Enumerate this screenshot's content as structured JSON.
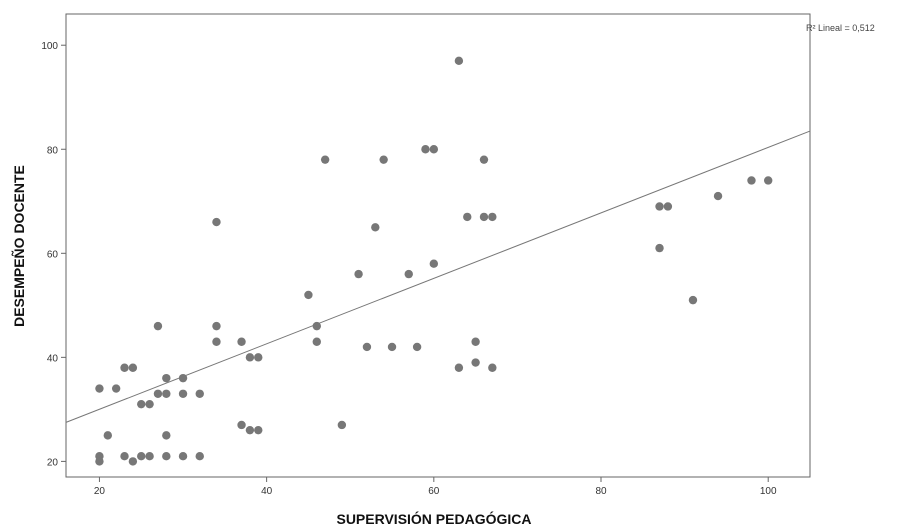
{
  "chart_data": {
    "type": "scatter",
    "xlabel": "SUPERVISIÓN PEDAGÓGICA",
    "ylabel": "DESEMPEÑO DOCENTE",
    "xlim": [
      16,
      105
    ],
    "ylim": [
      17,
      106
    ],
    "xticks": [
      20,
      40,
      60,
      80,
      100
    ],
    "yticks": [
      20,
      40,
      60,
      80,
      100
    ],
    "grid": false,
    "point_color": "#777777",
    "fit_line": {
      "type": "linear",
      "label": "R² Lineal = 0,512",
      "x": [
        16,
        105
      ],
      "y": [
        27.5,
        83.5
      ],
      "color": "#777777"
    },
    "points": [
      [
        20,
        34
      ],
      [
        20,
        21
      ],
      [
        20,
        20
      ],
      [
        21,
        25
      ],
      [
        22,
        34
      ],
      [
        23,
        38
      ],
      [
        23,
        21
      ],
      [
        24,
        38
      ],
      [
        24,
        20
      ],
      [
        25,
        31
      ],
      [
        25,
        21
      ],
      [
        26,
        31
      ],
      [
        26,
        21
      ],
      [
        27,
        46
      ],
      [
        27,
        33
      ],
      [
        28,
        36
      ],
      [
        28,
        33
      ],
      [
        28,
        25
      ],
      [
        28,
        21
      ],
      [
        30,
        36
      ],
      [
        30,
        33
      ],
      [
        30,
        21
      ],
      [
        32,
        33
      ],
      [
        32,
        21
      ],
      [
        34,
        66
      ],
      [
        34,
        46
      ],
      [
        34,
        43
      ],
      [
        37,
        43
      ],
      [
        37,
        27
      ],
      [
        38,
        40
      ],
      [
        38,
        26
      ],
      [
        39,
        40
      ],
      [
        39,
        26
      ],
      [
        45,
        52
      ],
      [
        46,
        46
      ],
      [
        46,
        43
      ],
      [
        47,
        78
      ],
      [
        49,
        27
      ],
      [
        51,
        56
      ],
      [
        52,
        42
      ],
      [
        53,
        65
      ],
      [
        54,
        78
      ],
      [
        55,
        42
      ],
      [
        57,
        56
      ],
      [
        58,
        42
      ],
      [
        59,
        80
      ],
      [
        60,
        80
      ],
      [
        60,
        58
      ],
      [
        63,
        97
      ],
      [
        63,
        38
      ],
      [
        64,
        67
      ],
      [
        65,
        43
      ],
      [
        65,
        39
      ],
      [
        66,
        78
      ],
      [
        66,
        67
      ],
      [
        67,
        67
      ],
      [
        67,
        38
      ],
      [
        87,
        69
      ],
      [
        87,
        61
      ],
      [
        88,
        69
      ],
      [
        91,
        51
      ],
      [
        94,
        71
      ],
      [
        98,
        74
      ],
      [
        100,
        74
      ]
    ]
  }
}
